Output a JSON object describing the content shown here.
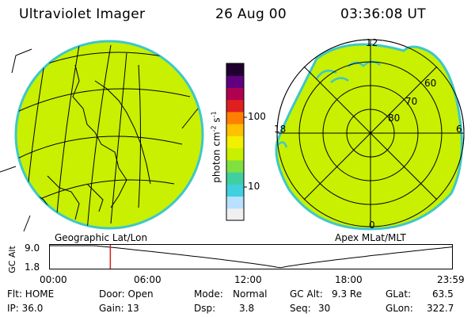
{
  "header": {
    "title": "Ultraviolet Imager",
    "date": "26 Aug 00",
    "time": "03:36:08 UT"
  },
  "colorbar": {
    "label": "photon cm",
    "label_exp1": "-2",
    "label_s": "s",
    "label_exp2": "-1",
    "ticks": [
      "100",
      "10"
    ],
    "colors": [
      "#f0f0f0",
      "#b8e0ff",
      "#40d0e0",
      "#40d0a0",
      "#7fe040",
      "#c8f000",
      "#f0f000",
      "#ffc000",
      "#ff8000",
      "#e02020",
      "#b00050",
      "#600080",
      "#200030"
    ]
  },
  "left_map": {
    "caption": "Geographic Lat/Lon",
    "fill_color": "#c8f000",
    "edge_color": "#3cc8c8"
  },
  "right_map": {
    "caption": "Apex MLat/MLT",
    "hour_labels": {
      "top": "12",
      "left": "18",
      "right": "6",
      "bottom": "0"
    },
    "lat_labels": [
      "60",
      "70",
      "80"
    ],
    "fill_color": "#c8f000",
    "edge_color": "#3cc8c8"
  },
  "altitude_plot": {
    "ylabel": "GC Alt",
    "ymax_label": "9.0",
    "ymin_label": "1.8",
    "xticks": [
      "00:00",
      "06:00",
      "12:00",
      "18:00",
      "23:59"
    ],
    "current_time_hours": 3.6,
    "marker_color": "#d02020"
  },
  "info": {
    "flt": "Flt: HOME",
    "ip": "IP: 36.0",
    "door": "Door: Open",
    "gain": "Gain: 13",
    "mode_label": "Mode:",
    "mode_value": "Normal",
    "dsp_label": "Dsp:",
    "dsp_value": "3.8",
    "gcalt_label": "GC Alt:",
    "gcalt_value": "9.3 Re",
    "seq_label": "Seq:",
    "seq_value": "30",
    "glat_label": "GLat:",
    "glat_value": "63.5",
    "glon_label": "GLon:",
    "glon_value": "322.7"
  }
}
